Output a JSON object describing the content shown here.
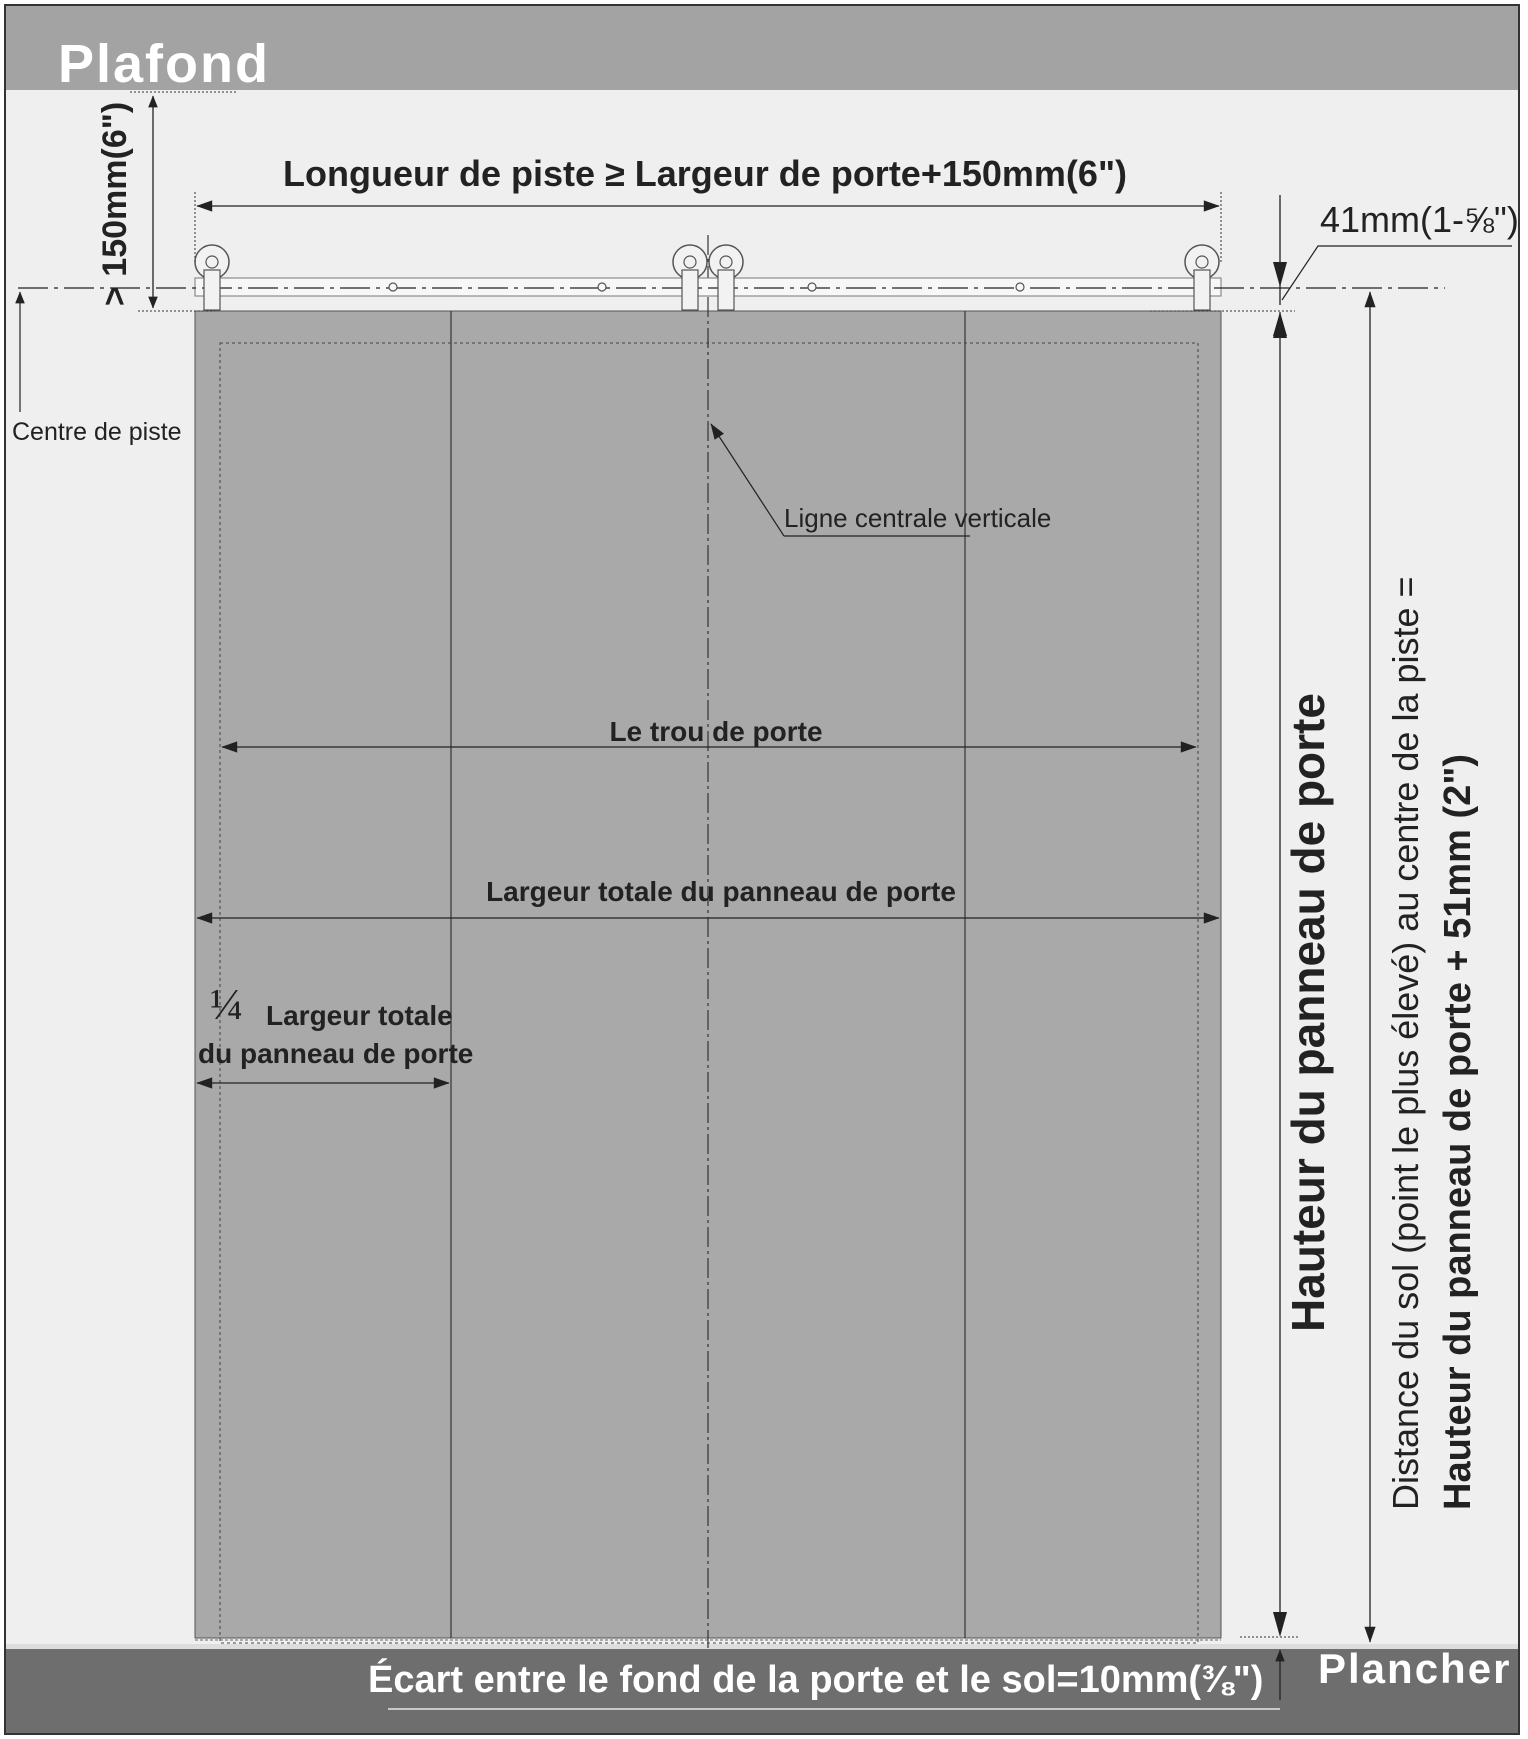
{
  "labels": {
    "ceiling": "Plafond",
    "floor": "Plancher",
    "track_length": "Longueur de piste ≥ Largeur de porte+150mm(6\")",
    "top_clearance": "> 150mm(6\")",
    "track_profile": "41mm(1-⅝\")",
    "track_center": "Centre de piste",
    "vertical_centerline": "Ligne centrale verticale",
    "door_opening": "Le trou de porte",
    "total_panel_width": "Largeur totale du panneau de porte",
    "quarter_fraction": "¼",
    "quarter_line1": "Largeur totale",
    "quarter_line2": "du panneau de porte",
    "panel_height": "Hauteur du panneau de porte",
    "distance_line1": "Distance du sol (point le plus élevé) au centre de la piste =",
    "distance_line2": "Hauteur du panneau de porte + 51mm (2\")",
    "floor_gap": "Écart entre le fond de la porte et le sol=10mm(⅜\")"
  },
  "colors": {
    "ceiling_band": "#a3a3a3",
    "floor_band": "#6e6e6e",
    "wall": "#efefef",
    "door_panel": "#a9a9a9",
    "line": "#222222",
    "hardware": "#f2f2f2",
    "band_text": "#ffffff"
  }
}
